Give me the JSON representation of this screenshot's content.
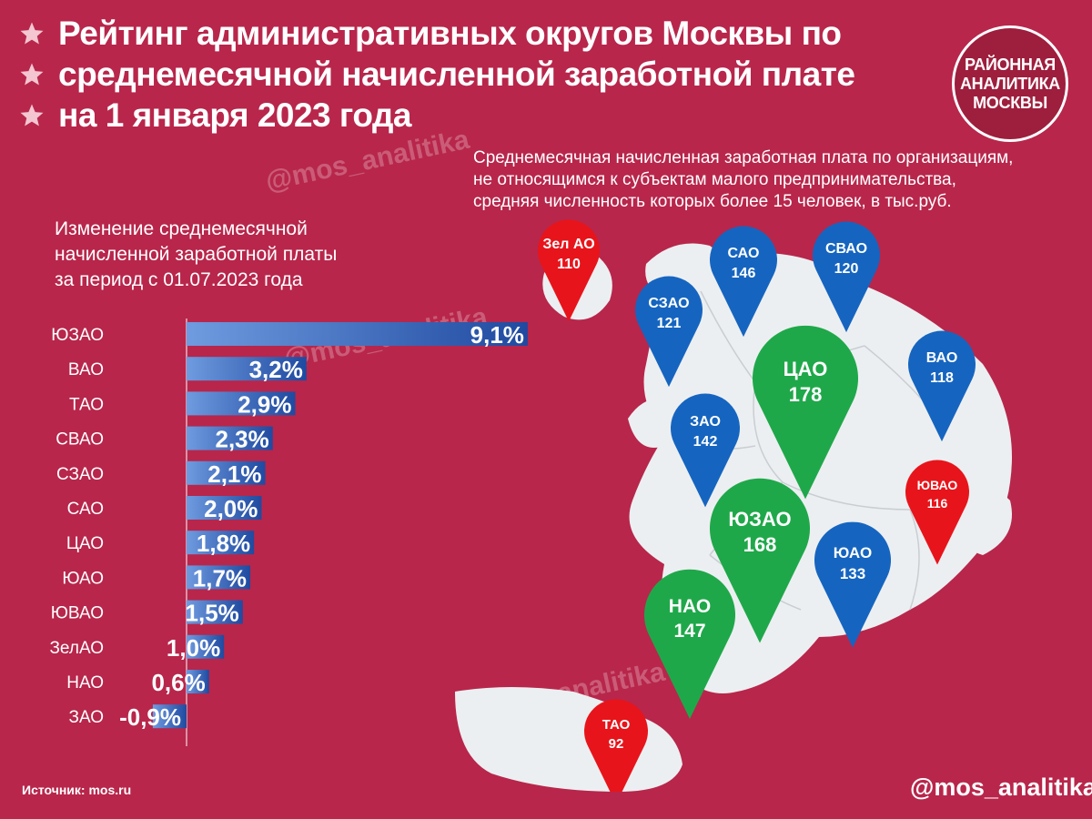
{
  "title": {
    "lines": [
      "Рейтинг административных округов Москвы по",
      "среднемесячной начисленной заработной плате",
      "на 1 января 2023 года"
    ]
  },
  "logo": {
    "lines": [
      "РАЙОННАЯ",
      "АНАЛИТИКА",
      "МОСКВЫ"
    ]
  },
  "map_description": [
    "Среднемесячная начисленная заработная плата по организациям,",
    "не относящимся к субъектам малого предпринимательства,",
    "средняя численность которых более 15 человек, в тыс.руб."
  ],
  "bar_description": [
    "Изменение среднемесячной",
    "начисленной заработной платы",
    "за период с 01.07.2023 года"
  ],
  "watermark": "@mos_analitika",
  "source": "Источник: mos.ru",
  "handle": "@mos_analitika",
  "colors": {
    "background": "#b8264b",
    "bar": "#3f6fc4",
    "pin_green": "#1fa84a",
    "pin_blue": "#1565c0",
    "pin_red": "#e8141b",
    "map": "#eceff1"
  },
  "chart_data": [
    {
      "type": "bar",
      "orientation": "horizontal",
      "categories": [
        "ЮЗАО",
        "ВАО",
        "ТАО",
        "СВАО",
        "СЗАО",
        "САО",
        "ЦАО",
        "ЮАО",
        "ЮВАО",
        "ЗелАО",
        "НАО",
        "ЗАО"
      ],
      "values": [
        9.1,
        3.2,
        2.9,
        2.3,
        2.1,
        2.0,
        1.8,
        1.7,
        1.5,
        1.0,
        0.6,
        -0.9
      ],
      "value_labels": [
        "9,1%",
        "3,2%",
        "2,9%",
        "2,3%",
        "2,1%",
        "2,0%",
        "1,8%",
        "1,7%",
        "1,5%",
        "1,0%",
        "0,6%",
        "-0,9%"
      ],
      "unit": "%"
    },
    {
      "type": "map",
      "pins": [
        {
          "label": "Зел АО",
          "value": 110,
          "color": "red"
        },
        {
          "label": "САО",
          "value": 146,
          "color": "blue"
        },
        {
          "label": "СВАО",
          "value": 120,
          "color": "blue"
        },
        {
          "label": "СЗАО",
          "value": 121,
          "color": "blue"
        },
        {
          "label": "ВАО",
          "value": 118,
          "color": "blue"
        },
        {
          "label": "ЦАО",
          "value": 178,
          "color": "green"
        },
        {
          "label": "ЗАО",
          "value": 142,
          "color": "blue"
        },
        {
          "label": "ЮВАО",
          "value": 116,
          "color": "red"
        },
        {
          "label": "ЮЗАО",
          "value": 168,
          "color": "green"
        },
        {
          "label": "ЮАО",
          "value": 133,
          "color": "blue"
        },
        {
          "label": "НАО",
          "value": 147,
          "color": "green"
        },
        {
          "label": "ТАО",
          "value": 92,
          "color": "red"
        }
      ]
    }
  ]
}
